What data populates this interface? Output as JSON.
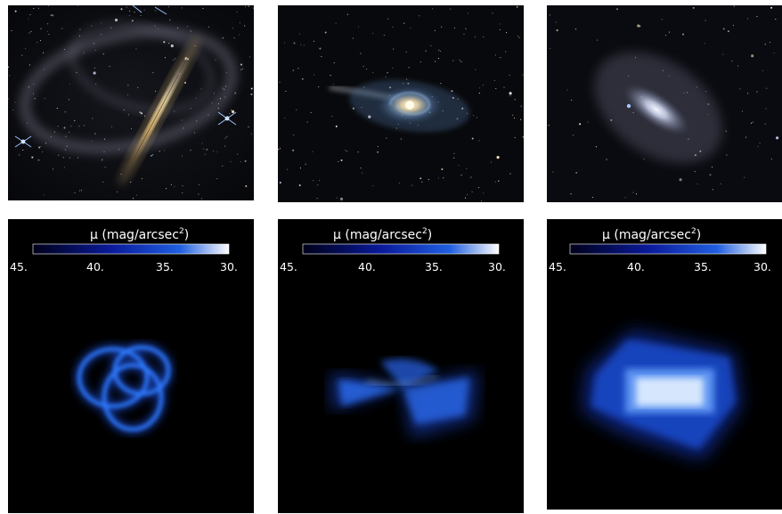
{
  "colorbar": {
    "title_symbol": "μ",
    "title_unit": " (mag/arcsec",
    "title_exp": "2",
    "title_close": ")",
    "ticks": [
      "45.",
      "40.",
      "35.",
      "30."
    ],
    "gradient": [
      "#000018",
      "#0a1a9a",
      "#1f5fe0",
      "#ffffff"
    ]
  },
  "colors": {
    "sky": "#07080b",
    "sim_bg": "#000000",
    "glow": "#1e6bff",
    "glow_bright": "#cfe6ff"
  },
  "panels": {
    "photos": [
      "needle-galaxy-photo",
      "barred-spiral-galaxy-photo",
      "lenticular-galaxy-photo"
    ],
    "simulations": [
      "loop-stream-simulation",
      "bowtie-stream-simulation",
      "shell-halo-simulation"
    ]
  }
}
